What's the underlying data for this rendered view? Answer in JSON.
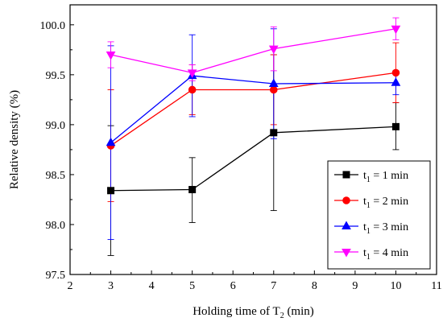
{
  "chart_data": {
    "type": "line",
    "xlabel_main": "Holding time of T",
    "xlabel_sub": "2",
    "xlabel_tail": " (min)",
    "ylabel": "Relative density (%)",
    "xlim": [
      2,
      11
    ],
    "ylim": [
      97.5,
      100.2
    ],
    "xticks": [
      2,
      3,
      4,
      5,
      6,
      7,
      8,
      9,
      10,
      11
    ],
    "yticks": [
      "97.5",
      "98.0",
      "98.5",
      "99.0",
      "99.5",
      "100.0"
    ],
    "x": [
      3,
      5,
      7,
      10
    ],
    "legend_position": "bottom-right",
    "series": [
      {
        "legend_main": "t",
        "legend_sub": "1",
        "legend_tail": " = 1 min",
        "name": "t1 = 1 min",
        "color": "#000000",
        "marker": "square",
        "values": [
          98.34,
          98.35,
          98.92,
          98.98
        ],
        "err_low": [
          97.69,
          98.02,
          98.14,
          98.75
        ],
        "err_high": [
          98.99,
          98.67,
          99.7,
          99.22
        ]
      },
      {
        "legend_main": "t",
        "legend_sub": "1",
        "legend_tail": " = 2 min",
        "name": "t1 = 2 min",
        "color": "#ff0000",
        "marker": "circle",
        "values": [
          98.79,
          99.35,
          99.35,
          99.52
        ],
        "err_low": [
          98.23,
          99.1,
          99.0,
          99.22
        ],
        "err_high": [
          99.35,
          99.6,
          99.7,
          99.82
        ]
      },
      {
        "legend_main": "t",
        "legend_sub": "1",
        "legend_tail": " = 3 min",
        "name": "t1 = 3 min",
        "color": "#0000ff",
        "marker": "triangle-up",
        "values": [
          98.82,
          99.49,
          99.41,
          99.42
        ],
        "err_low": [
          97.85,
          99.08,
          98.86,
          99.3
        ],
        "err_high": [
          99.79,
          99.9,
          99.96,
          99.54
        ]
      },
      {
        "legend_main": "t",
        "legend_sub": "1",
        "legend_tail": " = 4 min",
        "name": "t1 = 4 min",
        "color": "#ff00ff",
        "marker": "triangle-down",
        "values": [
          99.7,
          99.52,
          99.76,
          99.96
        ],
        "err_low": [
          99.57,
          99.44,
          99.54,
          99.85
        ],
        "err_high": [
          99.83,
          99.6,
          99.98,
          100.07
        ]
      }
    ]
  }
}
